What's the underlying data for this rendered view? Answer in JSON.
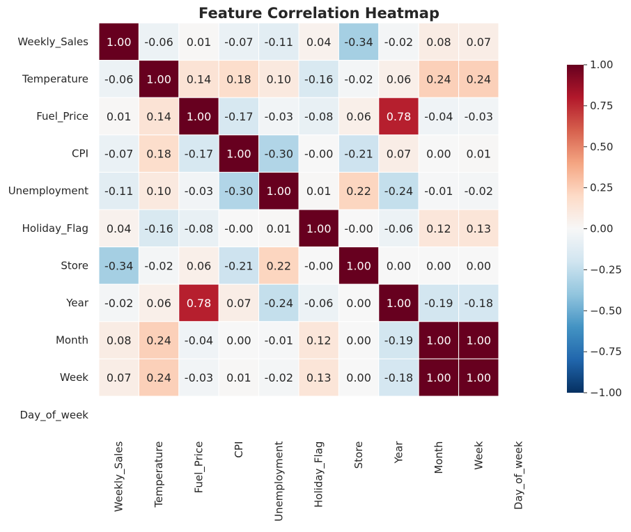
{
  "chart_data": {
    "type": "heatmap",
    "title": "Feature Correlation Heatmap",
    "row_labels": [
      "Weekly_Sales",
      "Temperature",
      "Fuel_Price",
      "CPI",
      "Unemployment",
      "Holiday_Flag",
      "Store",
      "Year",
      "Month",
      "Week",
      "Day_of_week"
    ],
    "col_labels": [
      "Weekly_Sales",
      "Temperature",
      "Fuel_Price",
      "CPI",
      "Unemployment",
      "Holiday_Flag",
      "Store",
      "Year",
      "Month",
      "Week",
      "Day_of_week"
    ],
    "values": [
      [
        1.0,
        -0.06,
        0.01,
        -0.07,
        -0.11,
        0.04,
        -0.34,
        -0.02,
        0.08,
        0.07,
        null
      ],
      [
        -0.06,
        1.0,
        0.14,
        0.18,
        0.1,
        -0.16,
        -0.02,
        0.06,
        0.24,
        0.24,
        null
      ],
      [
        0.01,
        0.14,
        1.0,
        -0.17,
        -0.03,
        -0.08,
        0.06,
        0.78,
        -0.04,
        -0.03,
        null
      ],
      [
        -0.07,
        0.18,
        -0.17,
        1.0,
        -0.3,
        -0.0,
        -0.21,
        0.07,
        0.0,
        0.01,
        null
      ],
      [
        -0.11,
        0.1,
        -0.03,
        -0.3,
        1.0,
        0.01,
        0.22,
        -0.24,
        -0.01,
        -0.02,
        null
      ],
      [
        0.04,
        -0.16,
        -0.08,
        -0.0,
        0.01,
        1.0,
        -0.0,
        -0.06,
        0.12,
        0.13,
        null
      ],
      [
        -0.34,
        -0.02,
        0.06,
        -0.21,
        0.22,
        -0.0,
        1.0,
        0.0,
        0.0,
        0.0,
        null
      ],
      [
        -0.02,
        0.06,
        0.78,
        0.07,
        -0.24,
        -0.06,
        0.0,
        1.0,
        -0.19,
        -0.18,
        null
      ],
      [
        0.08,
        0.24,
        -0.04,
        0.0,
        -0.01,
        0.12,
        0.0,
        -0.19,
        1.0,
        1.0,
        null
      ],
      [
        0.07,
        0.24,
        -0.03,
        0.01,
        -0.02,
        0.13,
        0.0,
        -0.18,
        1.0,
        1.0,
        null
      ],
      [
        null,
        null,
        null,
        null,
        null,
        null,
        null,
        null,
        null,
        null,
        null
      ]
    ],
    "annotations": [
      [
        "1.00",
        "-0.06",
        "0.01",
        "-0.07",
        "-0.11",
        "0.04",
        "-0.34",
        "-0.02",
        "0.08",
        "0.07",
        ""
      ],
      [
        "-0.06",
        "1.00",
        "0.14",
        "0.18",
        "0.10",
        "-0.16",
        "-0.02",
        "0.06",
        "0.24",
        "0.24",
        ""
      ],
      [
        "0.01",
        "0.14",
        "1.00",
        "-0.17",
        "-0.03",
        "-0.08",
        "0.06",
        "0.78",
        "-0.04",
        "-0.03",
        ""
      ],
      [
        "-0.07",
        "0.18",
        "-0.17",
        "1.00",
        "-0.30",
        "-0.00",
        "-0.21",
        "0.07",
        "0.00",
        "0.01",
        ""
      ],
      [
        "-0.11",
        "0.10",
        "-0.03",
        "-0.30",
        "1.00",
        "0.01",
        "0.22",
        "-0.24",
        "-0.01",
        "-0.02",
        ""
      ],
      [
        "0.04",
        "-0.16",
        "-0.08",
        "-0.00",
        "0.01",
        "1.00",
        "-0.00",
        "-0.06",
        "0.12",
        "0.13",
        ""
      ],
      [
        "-0.34",
        "-0.02",
        "0.06",
        "-0.21",
        "0.22",
        "-0.00",
        "1.00",
        "0.00",
        "0.00",
        "0.00",
        ""
      ],
      [
        "-0.02",
        "0.06",
        "0.78",
        "0.07",
        "-0.24",
        "-0.06",
        "0.00",
        "1.00",
        "-0.19",
        "-0.18",
        ""
      ],
      [
        "0.08",
        "0.24",
        "-0.04",
        "0.00",
        "-0.01",
        "0.12",
        "0.00",
        "-0.19",
        "1.00",
        "1.00",
        ""
      ],
      [
        "0.07",
        "0.24",
        "-0.03",
        "0.01",
        "-0.02",
        "0.13",
        "0.00",
        "-0.18",
        "1.00",
        "1.00",
        ""
      ],
      [
        "",
        "",
        "",
        "",
        "",
        "",
        "",
        "",
        "",
        "",
        ""
      ]
    ],
    "colormap": "RdBu_r",
    "vmin": -1.0,
    "vmax": 1.0,
    "colorbar": {
      "ticks": [
        1.0,
        0.75,
        0.5,
        0.25,
        0.0,
        -0.25,
        -0.5,
        -0.75,
        -1.0
      ],
      "tick_labels": [
        "1.00",
        "0.75",
        "0.50",
        "0.25",
        "0.00",
        "−0.25",
        "−0.50",
        "−0.75",
        "−1.00"
      ],
      "placement": "right"
    },
    "colors": {
      "cell_border": "#ffffff",
      "text_dark": "#262626",
      "text_light": "#ffffff"
    },
    "grid": false
  }
}
